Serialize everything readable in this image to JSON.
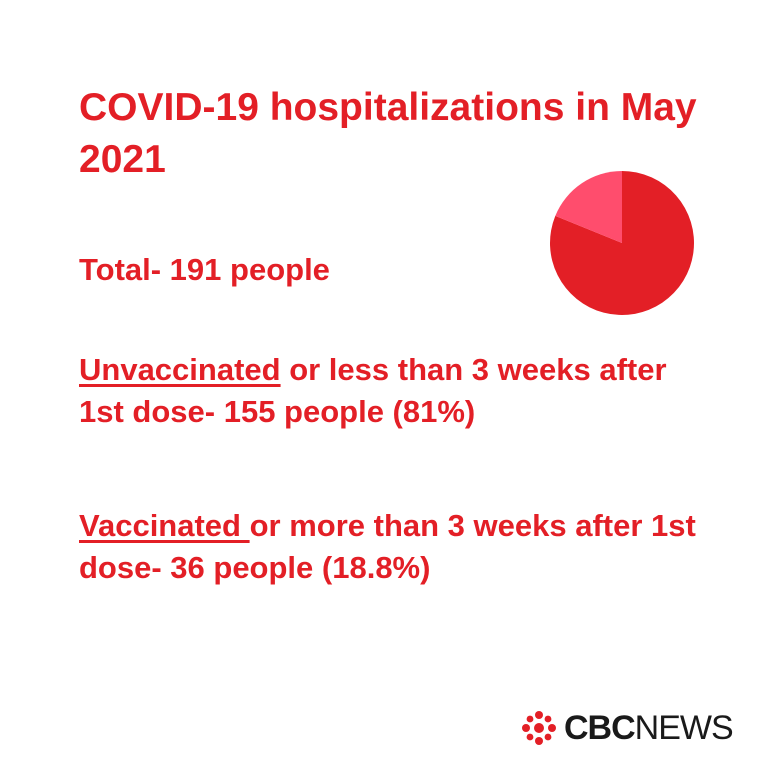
{
  "header": {
    "title": "COVID-19 hospitalizations in May 2021"
  },
  "total": {
    "text": "Total- 191 people"
  },
  "groups": [
    {
      "label": "Unvaccinated",
      "detail": " or less than 3 weeks after 1st dose- 155 people (81%)"
    },
    {
      "label": "Vaccinated ",
      "detail": "or more than 3 weeks after 1st dose- 36 people (18.8%)"
    }
  ],
  "brand": {
    "bold": "CBC",
    "regular": "NEWS",
    "icon": "cbc-gem-icon"
  },
  "colors": {
    "accent": "#e31f26",
    "secondary": "#ff4d6d",
    "text_dark": "#1a1a1a"
  },
  "chart_data": {
    "type": "pie",
    "total": 191,
    "slices": [
      {
        "label": "Unvaccinated",
        "value": 155,
        "percent": 81,
        "color": "#e31f26"
      },
      {
        "label": "Vaccinated",
        "value": 36,
        "percent": 18.8,
        "color": "#ff4d6d"
      }
    ]
  }
}
